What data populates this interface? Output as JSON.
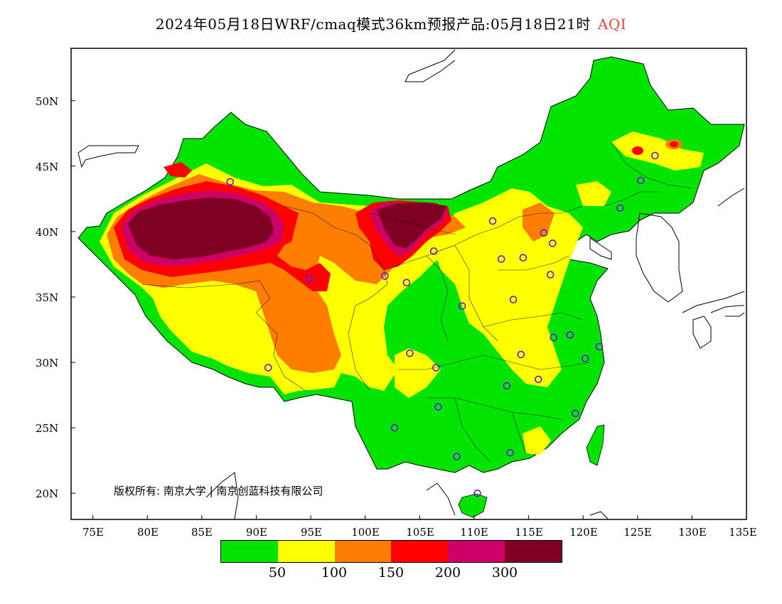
{
  "title": {
    "main": "2024年05月18日WRF/cmaq模式36km预报产品:05月18日21时",
    "variable": "AQI"
  },
  "axes": {
    "y_labels": [
      "50N",
      "45N",
      "40N",
      "35N",
      "30N",
      "25N",
      "20N"
    ],
    "x_labels": [
      "75E",
      "80E",
      "85E",
      "90E",
      "95E",
      "100E",
      "105E",
      "110E",
      "115E",
      "120E",
      "125E",
      "130E",
      "135E"
    ]
  },
  "copyright": "版权所有: 南京大学 | 南京创蓝科技有限公司",
  "legend": {
    "colors": [
      "#00e400",
      "#ffff00",
      "#ff7e00",
      "#ff0000",
      "#cc0066",
      "#7e0023"
    ],
    "ticks": [
      "50",
      "100",
      "150",
      "200",
      "300"
    ]
  },
  "map_data": {
    "lon_range": [
      73,
      135
    ],
    "lat_range": [
      18,
      54
    ],
    "stations": [
      [
        87.6,
        43.8
      ],
      [
        94.9,
        36.4
      ],
      [
        91.1,
        29.6
      ],
      [
        101.8,
        36.6
      ],
      [
        103.8,
        36.1
      ],
      [
        106.3,
        38.5
      ],
      [
        111.7,
        40.8
      ],
      [
        116.4,
        39.9
      ],
      [
        117.2,
        39.1
      ],
      [
        114.5,
        38.0
      ],
      [
        112.5,
        37.9
      ],
      [
        113.6,
        34.8
      ],
      [
        117.0,
        36.7
      ],
      [
        118.8,
        32.1
      ],
      [
        120.2,
        30.3
      ],
      [
        121.5,
        31.2
      ],
      [
        117.3,
        31.9
      ],
      [
        114.3,
        30.6
      ],
      [
        113.0,
        28.2
      ],
      [
        115.9,
        28.7
      ],
      [
        119.3,
        26.1
      ],
      [
        113.3,
        23.1
      ],
      [
        108.4,
        22.8
      ],
      [
        106.7,
        26.6
      ],
      [
        102.7,
        25.0
      ],
      [
        104.1,
        30.7
      ],
      [
        106.5,
        29.6
      ],
      [
        108.9,
        34.3
      ],
      [
        123.4,
        41.8
      ],
      [
        125.3,
        43.9
      ],
      [
        126.6,
        45.8
      ],
      [
        110.3,
        20.0
      ],
      [
        118.8,
        32.1
      ]
    ]
  }
}
